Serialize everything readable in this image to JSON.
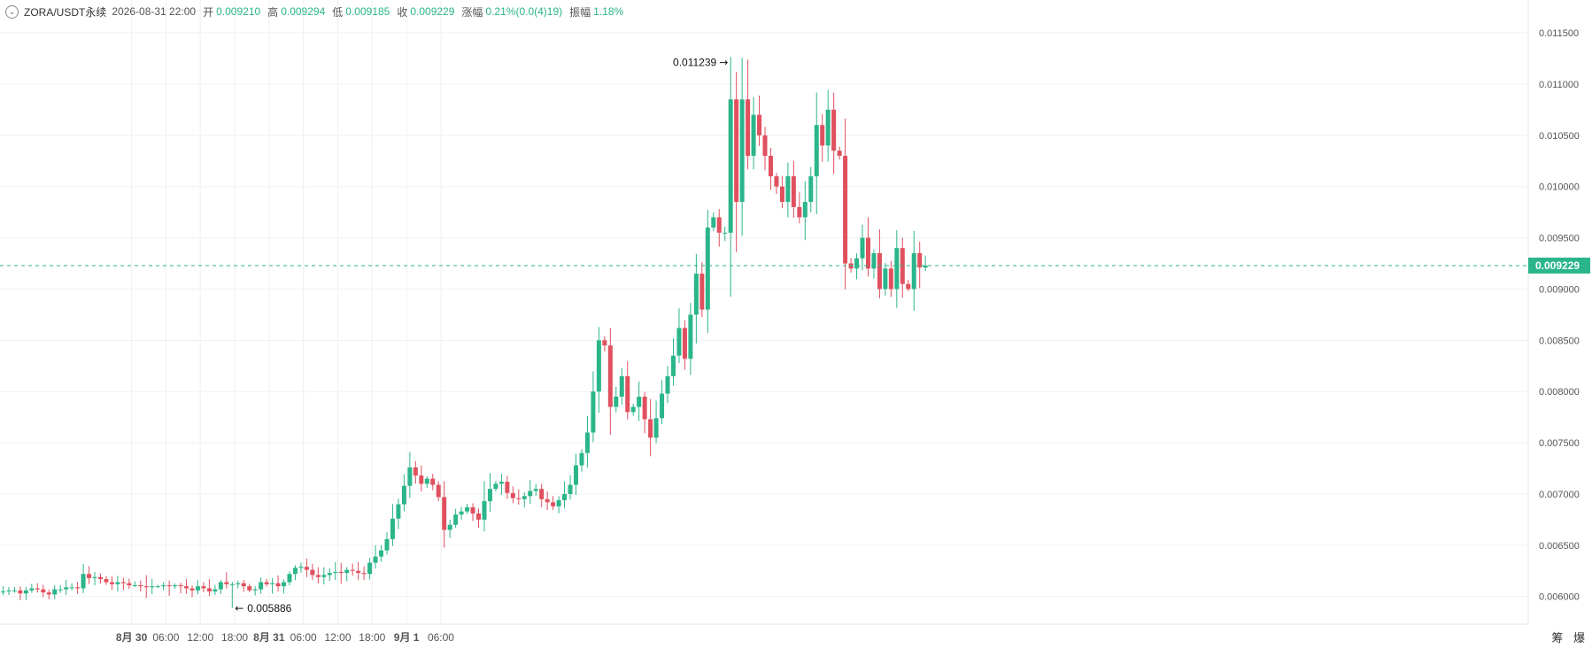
{
  "header": {
    "symbol": "ZORA/USDT永续",
    "datetime": "2026-08-31 22:00",
    "open_label": "开",
    "open": "0.009210",
    "high_label": "高",
    "high": "0.009294",
    "low_label": "低",
    "low": "0.009185",
    "close_label": "收",
    "close": "0.009229",
    "change_label": "涨幅",
    "change": "0.21%(0.0(4)19)",
    "amplitude_label": "振幅",
    "amplitude": "1.18%"
  },
  "corner_label": "筹 爆",
  "colors": {
    "up": "#2bb58a",
    "down": "#e0505e",
    "grid": "#f0f0f0",
    "axis_text": "#555555"
  },
  "chart_data": {
    "type": "candlestick",
    "interval_hours": 1,
    "y_ticks": [
      "0.006000",
      "0.006500",
      "0.007000",
      "0.007500",
      "0.008000",
      "0.008500",
      "0.009000",
      "0.009500",
      "0.010000",
      "0.010500",
      "0.011000",
      "0.011500"
    ],
    "ylim": [
      0.00573,
      0.01182
    ],
    "x_ticks": [
      "8月 30",
      "06:00",
      "12:00",
      "18:00",
      "8月 31",
      "06:00",
      "12:00",
      "18:00",
      "9月 1",
      "06:00"
    ],
    "last_price": "0.009229",
    "max_annotation": "0.011239",
    "min_annotation": "0.005886",
    "closes": [
      0.00605,
      0.00606,
      0.00606,
      0.00603,
      0.00606,
      0.00608,
      0.00607,
      0.00604,
      0.00602,
      0.00607,
      0.00607,
      0.00609,
      0.00609,
      0.00608,
      0.00622,
      0.00618,
      0.00619,
      0.00617,
      0.00614,
      0.00612,
      0.00614,
      0.00613,
      0.00611,
      0.00611,
      0.0061,
      0.00609,
      0.0061,
      0.0061,
      0.00611,
      0.0061,
      0.00611,
      0.0061,
      0.00608,
      0.00606,
      0.0061,
      0.00608,
      0.00605,
      0.00607,
      0.00614,
      0.00612,
      0.00612,
      0.00613,
      0.0061,
      0.00606,
      0.00607,
      0.00614,
      0.00612,
      0.00613,
      0.0061,
      0.00614,
      0.00622,
      0.00628,
      0.00629,
      0.00626,
      0.00621,
      0.00619,
      0.00621,
      0.00623,
      0.00624,
      0.00623,
      0.00626,
      0.00625,
      0.00623,
      0.00622,
      0.00633,
      0.00639,
      0.00645,
      0.00656,
      0.00676,
      0.0069,
      0.00708,
      0.00726,
      0.00718,
      0.0071,
      0.00715,
      0.00709,
      0.00697,
      0.00665,
      0.0067,
      0.0068,
      0.00683,
      0.00687,
      0.00681,
      0.00675,
      0.00693,
      0.00705,
      0.0071,
      0.00712,
      0.00701,
      0.00696,
      0.00695,
      0.00698,
      0.00703,
      0.00705,
      0.00695,
      0.00692,
      0.00688,
      0.00694,
      0.007,
      0.00709,
      0.00728,
      0.0074,
      0.0076,
      0.008,
      0.0085,
      0.00845,
      0.00785,
      0.00795,
      0.00815,
      0.0078,
      0.00785,
      0.00795,
      0.00773,
      0.00755,
      0.00774,
      0.00798,
      0.00815,
      0.00835,
      0.00862,
      0.00832,
      0.00875,
      0.00915,
      0.0088,
      0.0096,
      0.0097,
      0.00955,
      0.00955,
      0.01085,
      0.00985,
      0.01085,
      0.0103,
      0.0107,
      0.0105,
      0.0103,
      0.0101,
      0.01,
      0.00985,
      0.0101,
      0.0098,
      0.0097,
      0.00985,
      0.0101,
      0.0106,
      0.0104,
      0.01075,
      0.01035,
      0.0103,
      0.00925,
      0.0092,
      0.0093,
      0.0095,
      0.0092,
      0.00935,
      0.009,
      0.0092,
      0.009,
      0.0094,
      0.00905,
      0.009,
      0.00935,
      0.00921,
      0.009229
    ]
  }
}
